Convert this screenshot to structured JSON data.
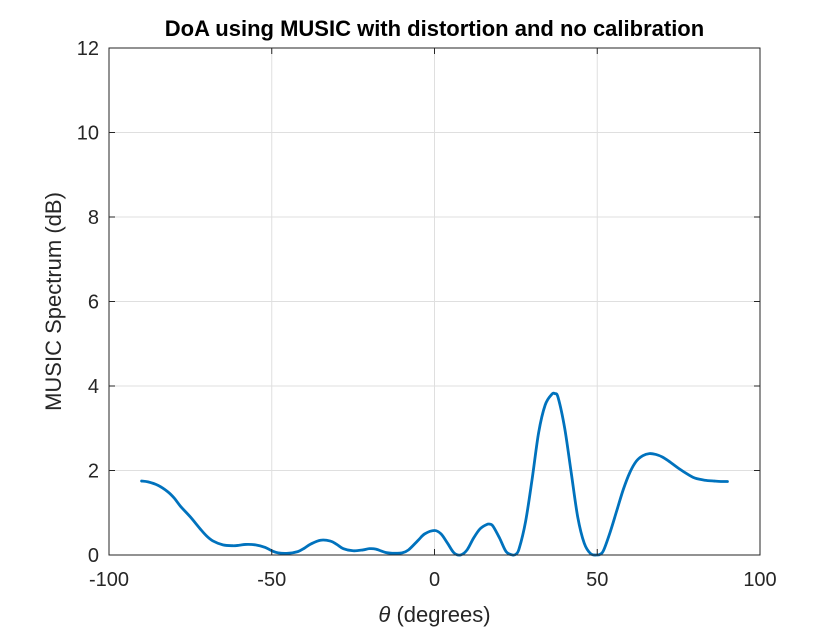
{
  "chart_data": {
    "type": "line",
    "title": "DoA using MUSIC with distortion and no calibration",
    "xlabel_symbol": "θ",
    "xlabel_text": " (degrees)",
    "ylabel": "MUSIC Spectrum (dB)",
    "xlim": [
      -100,
      100
    ],
    "ylim": [
      0,
      12
    ],
    "xticks": [
      -100,
      -50,
      0,
      50,
      100
    ],
    "yticks": [
      0,
      2,
      4,
      6,
      8,
      10,
      12
    ],
    "xtick_labels": [
      "-100",
      "-50",
      "0",
      "50",
      "100"
    ],
    "ytick_labels": [
      "0",
      "2",
      "4",
      "6",
      "8",
      "10",
      "12"
    ],
    "grid": true,
    "line_color": "#0072BD",
    "series": [
      {
        "x": [
          -90,
          -88,
          -85,
          -82,
          -80,
          -78,
          -75,
          -72,
          -70,
          -68,
          -65,
          -62,
          -60,
          -58,
          -55,
          -52,
          -50,
          -48,
          -45,
          -42,
          -40,
          -38,
          -35,
          -32,
          -30,
          -28,
          -25,
          -22,
          -20,
          -18,
          -15,
          -12,
          -10,
          -8,
          -5,
          -3,
          0,
          2,
          4,
          6,
          8,
          10,
          12,
          14,
          16,
          17,
          18,
          20,
          22,
          24,
          25,
          26,
          28,
          30,
          32,
          34,
          36,
          37,
          38,
          40,
          42,
          44,
          46,
          48,
          50,
          51,
          52,
          54,
          56,
          58,
          60,
          62,
          64,
          66,
          68,
          70,
          72,
          75,
          78,
          80,
          83,
          86,
          88,
          90
        ],
        "y": [
          1.75,
          1.73,
          1.65,
          1.5,
          1.35,
          1.15,
          0.9,
          0.62,
          0.45,
          0.33,
          0.24,
          0.22,
          0.23,
          0.25,
          0.24,
          0.18,
          0.1,
          0.05,
          0.04,
          0.08,
          0.16,
          0.26,
          0.35,
          0.33,
          0.25,
          0.15,
          0.1,
          0.12,
          0.15,
          0.14,
          0.06,
          0.04,
          0.05,
          0.12,
          0.35,
          0.5,
          0.58,
          0.5,
          0.28,
          0.05,
          0.0,
          0.12,
          0.4,
          0.62,
          0.72,
          0.73,
          0.68,
          0.4,
          0.08,
          0.0,
          0.02,
          0.15,
          0.8,
          1.8,
          2.9,
          3.55,
          3.8,
          3.82,
          3.72,
          3.0,
          1.95,
          0.9,
          0.28,
          0.03,
          0.0,
          0.02,
          0.12,
          0.55,
          1.05,
          1.55,
          1.95,
          2.22,
          2.35,
          2.4,
          2.38,
          2.32,
          2.22,
          2.05,
          1.9,
          1.82,
          1.77,
          1.75,
          1.74,
          1.74
        ]
      }
    ]
  }
}
